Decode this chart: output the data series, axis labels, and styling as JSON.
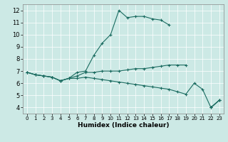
{
  "xlabel": "Humidex (Indice chaleur)",
  "xlim": [
    -0.5,
    23.5
  ],
  "ylim": [
    3.5,
    12.5
  ],
  "xticks": [
    0,
    1,
    2,
    3,
    4,
    5,
    6,
    7,
    8,
    9,
    10,
    11,
    12,
    13,
    14,
    15,
    16,
    17,
    18,
    19,
    20,
    21,
    22,
    23
  ],
  "yticks": [
    4,
    5,
    6,
    7,
    8,
    9,
    10,
    11,
    12
  ],
  "bg_color": "#cce9e5",
  "line_color": "#1a6b60",
  "grid_color": "#ffffff",
  "lines": [
    {
      "x": [
        0,
        1,
        2,
        3,
        4,
        5,
        6,
        7,
        8,
        9,
        10,
        11,
        12,
        13,
        14,
        15,
        16,
        17,
        18,
        19,
        20,
        21,
        22,
        23
      ],
      "y": [
        6.9,
        6.7,
        6.6,
        6.5,
        6.2,
        6.4,
        6.9,
        7.0,
        8.3,
        9.3,
        10.0,
        12.0,
        11.4,
        11.5,
        11.5,
        11.3,
        11.2,
        10.8,
        null,
        null,
        null,
        null,
        4.0,
        4.6
      ]
    },
    {
      "x": [
        0,
        1,
        2,
        3,
        4,
        5,
        6,
        7,
        8,
        9,
        10,
        11,
        12,
        13,
        14,
        15,
        16,
        17,
        18,
        19,
        20,
        21,
        22,
        23
      ],
      "y": [
        6.9,
        6.7,
        6.6,
        6.5,
        6.2,
        6.4,
        6.6,
        6.9,
        6.9,
        7.0,
        7.0,
        7.0,
        7.1,
        7.2,
        7.2,
        7.3,
        7.4,
        7.5,
        7.5,
        7.5,
        null,
        null,
        4.0,
        4.6
      ]
    },
    {
      "x": [
        0,
        1,
        2,
        3,
        4,
        5,
        6,
        7,
        8,
        9,
        10,
        11,
        12,
        13,
        14,
        15,
        16,
        17,
        18,
        19,
        20,
        21,
        22,
        23
      ],
      "y": [
        6.9,
        6.7,
        6.6,
        6.5,
        6.2,
        6.4,
        6.4,
        6.5,
        6.4,
        6.3,
        6.2,
        6.1,
        6.0,
        5.9,
        5.8,
        5.7,
        5.6,
        5.5,
        5.3,
        5.1,
        6.0,
        5.5,
        4.0,
        4.6
      ]
    }
  ]
}
